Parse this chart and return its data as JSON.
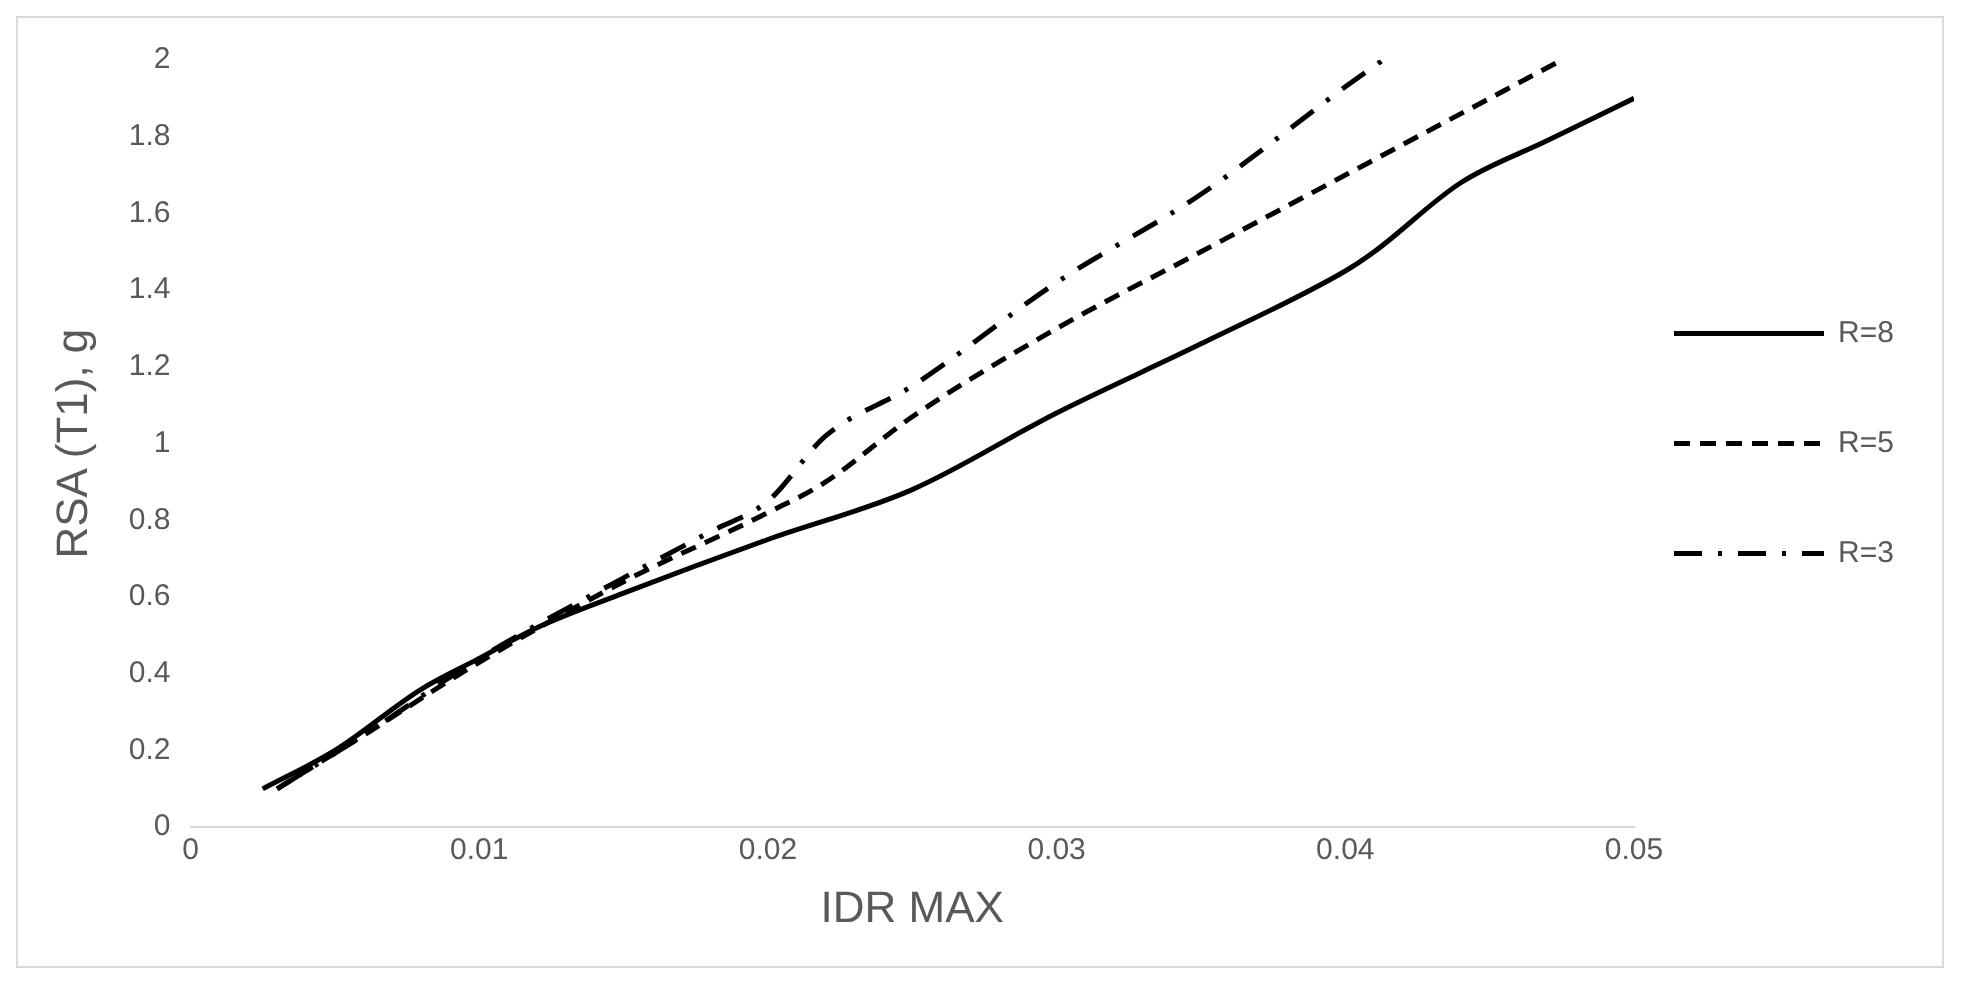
{
  "chart_data": {
    "type": "line",
    "xlabel": "IDR MAX",
    "ylabel": "RSA (T1), g",
    "xlim": [
      0,
      0.05
    ],
    "xticks": [
      0,
      0.01,
      0.02,
      0.03,
      0.04,
      0.05
    ],
    "ylim": [
      0,
      2
    ],
    "yticks": [
      0,
      0.2,
      0.4,
      0.6,
      0.8,
      1,
      1.2,
      1.4,
      1.6,
      1.8,
      2
    ],
    "legend": "right",
    "marker": "none",
    "grid": false,
    "series": [
      {
        "name": "R=8",
        "color": "#000000",
        "line_style": "solid",
        "x": [
          0.0025,
          0.005,
          0.008,
          0.01,
          0.012,
          0.015,
          0.02,
          0.025,
          0.03,
          0.035,
          0.04,
          0.041,
          0.044,
          0.047,
          0.05
        ],
        "values": [
          0.1,
          0.2,
          0.36,
          0.44,
          0.52,
          0.61,
          0.75,
          0.88,
          1.08,
          1.26,
          1.45,
          1.5,
          1.68,
          1.79,
          1.9
        ]
      },
      {
        "name": "R=5",
        "color": "#000000",
        "line_style": "dashed",
        "x": [
          0.003,
          0.006,
          0.01,
          0.015,
          0.02,
          0.022,
          0.025,
          0.03,
          0.035,
          0.04,
          0.045,
          0.0475
        ],
        "values": [
          0.1,
          0.24,
          0.43,
          0.64,
          0.82,
          0.9,
          1.07,
          1.3,
          1.5,
          1.7,
          1.9,
          2
        ]
      },
      {
        "name": "R=3",
        "color": "#000000",
        "line_style": "dashdot",
        "x": [
          0.003,
          0.006,
          0.01,
          0.015,
          0.018,
          0.02,
          0.022,
          0.025,
          0.03,
          0.035,
          0.04,
          0.0413
        ],
        "values": [
          0.1,
          0.24,
          0.44,
          0.65,
          0.77,
          0.85,
          1.02,
          1.15,
          1.42,
          1.65,
          1.93,
          2
        ]
      }
    ]
  }
}
